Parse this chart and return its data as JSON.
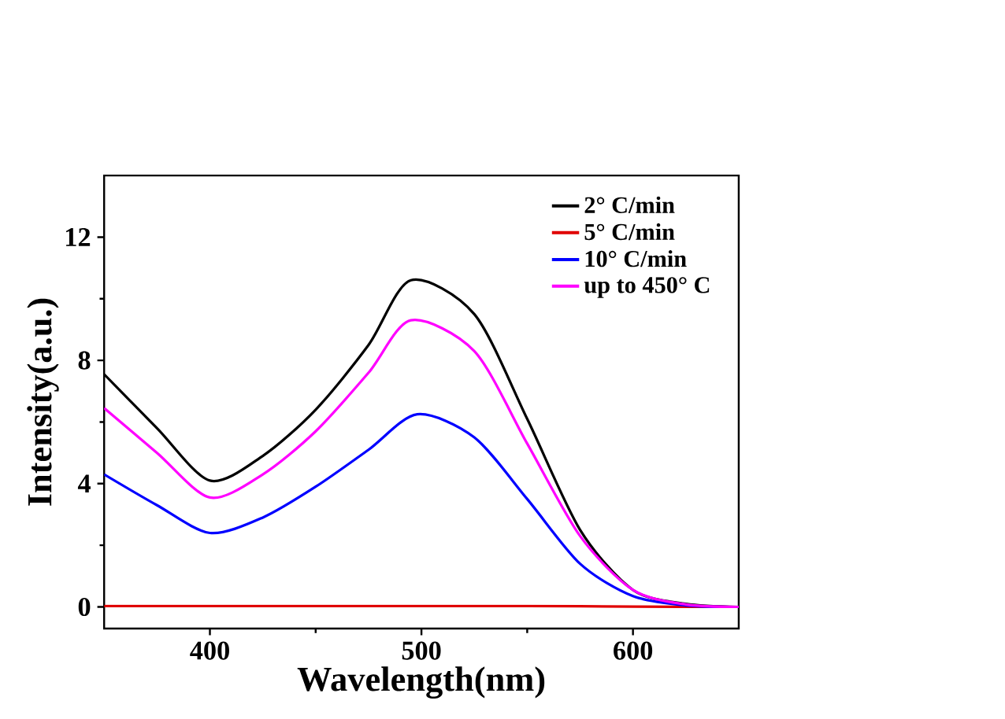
{
  "chart_data": {
    "type": "line",
    "xlabel": "Wavelength(nm)",
    "ylabel": "Intensity(a.u.)",
    "xlim": [
      350,
      650
    ],
    "ylim": [
      -0.7,
      14
    ],
    "xticks": [
      400,
      500,
      600
    ],
    "yticks": [
      0,
      4,
      8,
      12
    ],
    "legend": "top right",
    "grid": false,
    "marker": "none",
    "line_style": "solid",
    "series": [
      {
        "name": "2° C/min",
        "color": "#000000",
        "x": [
          350,
          375,
          400,
          425,
          450,
          475,
          495,
          525,
          550,
          575,
          600,
          625,
          650
        ],
        "values": [
          7.55,
          5.8,
          4.1,
          4.9,
          6.4,
          8.5,
          10.6,
          9.5,
          6.1,
          2.5,
          0.55,
          0.1,
          0
        ]
      },
      {
        "name": "5° C/min",
        "color": "#e00000",
        "x": [
          350,
          400,
          450,
          500,
          550,
          600,
          650
        ],
        "values": [
          0.03,
          0.03,
          0.03,
          0.03,
          0.03,
          0.01,
          0
        ]
      },
      {
        "name": "10° C/min",
        "color": "#0000ff",
        "x": [
          350,
          375,
          400,
          425,
          450,
          475,
          498,
          525,
          550,
          575,
          600,
          625,
          650
        ],
        "values": [
          4.3,
          3.3,
          2.4,
          2.9,
          3.9,
          5.1,
          6.25,
          5.5,
          3.5,
          1.4,
          0.35,
          0.05,
          0
        ]
      },
      {
        "name": "up to 450° C",
        "color": "#ff00ff",
        "x": [
          350,
          375,
          400,
          425,
          450,
          475,
          495,
          525,
          550,
          575,
          600,
          625,
          650
        ],
        "values": [
          6.45,
          5.0,
          3.55,
          4.3,
          5.7,
          7.6,
          9.3,
          8.3,
          5.3,
          2.3,
          0.55,
          0.08,
          0
        ]
      }
    ]
  }
}
